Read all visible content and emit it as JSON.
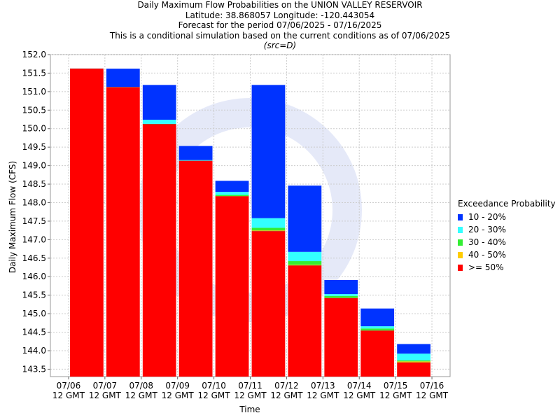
{
  "titles": {
    "line1": "Daily Maximum Flow Probabilities on the UNION VALLEY RESERVOIR",
    "line2": "Latitude: 38.868057 Longitude: -120.443054",
    "line3": "Forecast for the period 07/06/2025 - 07/16/2025",
    "line4": "This is a conditional simulation based on the current conditions as of 07/06/2025",
    "line5": "(src=D)"
  },
  "chart_data": {
    "type": "bar",
    "stacked": true,
    "xlabel": "Time",
    "ylabel": "Daily Maximum Flow (CFS)",
    "ylim": [
      143.3,
      152.0
    ],
    "yticks": [
      "143.5",
      "144.0",
      "144.5",
      "145.0",
      "145.5",
      "146.0",
      "146.5",
      "147.0",
      "147.5",
      "148.0",
      "148.5",
      "149.0",
      "149.5",
      "150.0",
      "150.5",
      "151.0",
      "151.5",
      "152.0"
    ],
    "xticks": [
      {
        "date": "07/06",
        "time": "12 GMT"
      },
      {
        "date": "07/07",
        "time": "12 GMT"
      },
      {
        "date": "07/08",
        "time": "12 GMT"
      },
      {
        "date": "07/09",
        "time": "12 GMT"
      },
      {
        "date": "07/10",
        "time": "12 GMT"
      },
      {
        "date": "07/11",
        "time": "12 GMT"
      },
      {
        "date": "07/12",
        "time": "12 GMT"
      },
      {
        "date": "07/13",
        "time": "12 GMT"
      },
      {
        "date": "07/14",
        "time": "12 GMT"
      },
      {
        "date": "07/15",
        "time": "12 GMT"
      },
      {
        "date": "07/16",
        "time": "12 GMT"
      }
    ],
    "grid": true,
    "legend_title": "Exceedance Probability",
    "legend_position": "right",
    "legend": [
      {
        "label": "10 - 20%",
        "color": "#0033ff"
      },
      {
        "label": "20 - 30%",
        "color": "#33ffff"
      },
      {
        "label": "30 - 40%",
        "color": "#33ee33"
      },
      {
        "label": "40 - 50%",
        "color": "#ffcc00"
      },
      {
        "label": ">= 50%",
        "color": "#ff0000"
      }
    ],
    "bars": [
      {
        "p50": 151.62,
        "p40": 151.62,
        "p30": 151.62,
        "p20": 151.62,
        "p10": 151.62
      },
      {
        "p50": 151.12,
        "p40": 151.12,
        "p30": 151.12,
        "p20": 151.13,
        "p10": 151.62
      },
      {
        "p50": 150.12,
        "p40": 150.12,
        "p30": 150.13,
        "p20": 150.24,
        "p10": 151.18
      },
      {
        "p50": 149.13,
        "p40": 149.13,
        "p30": 149.13,
        "p20": 149.15,
        "p10": 149.53
      },
      {
        "p50": 148.17,
        "p40": 148.18,
        "p30": 148.21,
        "p20": 148.29,
        "p10": 148.59
      },
      {
        "p50": 147.23,
        "p40": 147.25,
        "p30": 147.32,
        "p20": 147.58,
        "p10": 151.18
      },
      {
        "p50": 146.3,
        "p40": 146.32,
        "p30": 146.42,
        "p20": 146.67,
        "p10": 148.46
      },
      {
        "p50": 145.42,
        "p40": 145.43,
        "p30": 145.48,
        "p20": 145.53,
        "p10": 145.91
      },
      {
        "p50": 144.54,
        "p40": 144.55,
        "p30": 144.6,
        "p20": 144.66,
        "p10": 145.14
      },
      {
        "p50": 143.68,
        "p40": 143.71,
        "p30": 143.74,
        "p20": 143.92,
        "p10": 144.18
      }
    ]
  }
}
